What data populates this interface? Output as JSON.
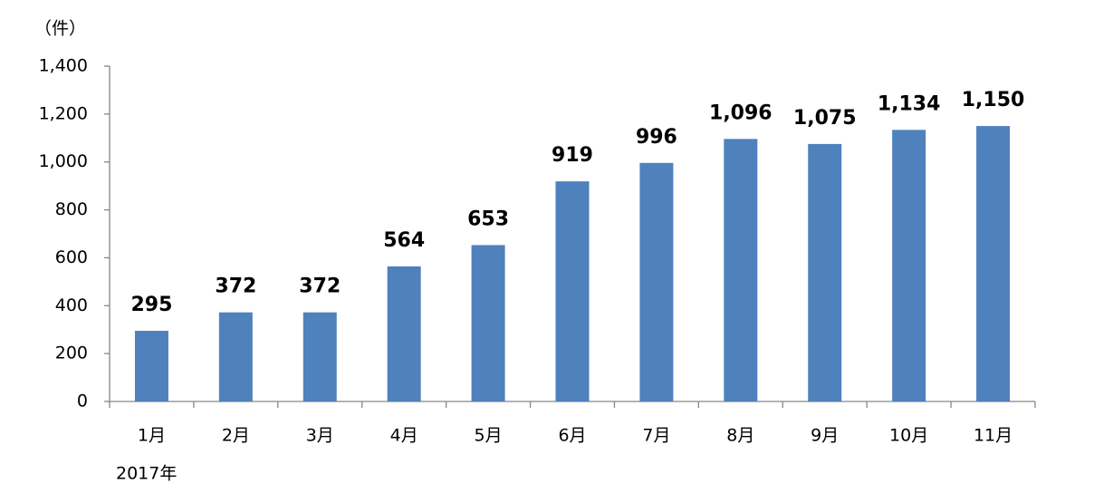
{
  "chart_data": {
    "type": "bar",
    "y_label": "（件）",
    "annotation": "2017年",
    "categories": [
      "1月",
      "2月",
      "3月",
      "4月",
      "5月",
      "6月",
      "7月",
      "8月",
      "9月",
      "10月",
      "11月"
    ],
    "values": [
      295,
      372,
      372,
      564,
      653,
      919,
      996,
      1096,
      1075,
      1134,
      1150
    ],
    "value_labels": [
      "295",
      "372",
      "372",
      "564",
      "653",
      "919",
      "996",
      "1,096",
      "1,075",
      "1,134",
      "1,150"
    ],
    "color": "#4f81bd",
    "ylim": [
      0,
      1400
    ],
    "yticks": [
      0,
      200,
      400,
      600,
      800,
      {
        "value": 1000,
        "label": "1,000"
      },
      {
        "value": 1200,
        "label": "1,200"
      },
      {
        "value": 1400,
        "label": "1,400"
      }
    ],
    "grid": false
  }
}
